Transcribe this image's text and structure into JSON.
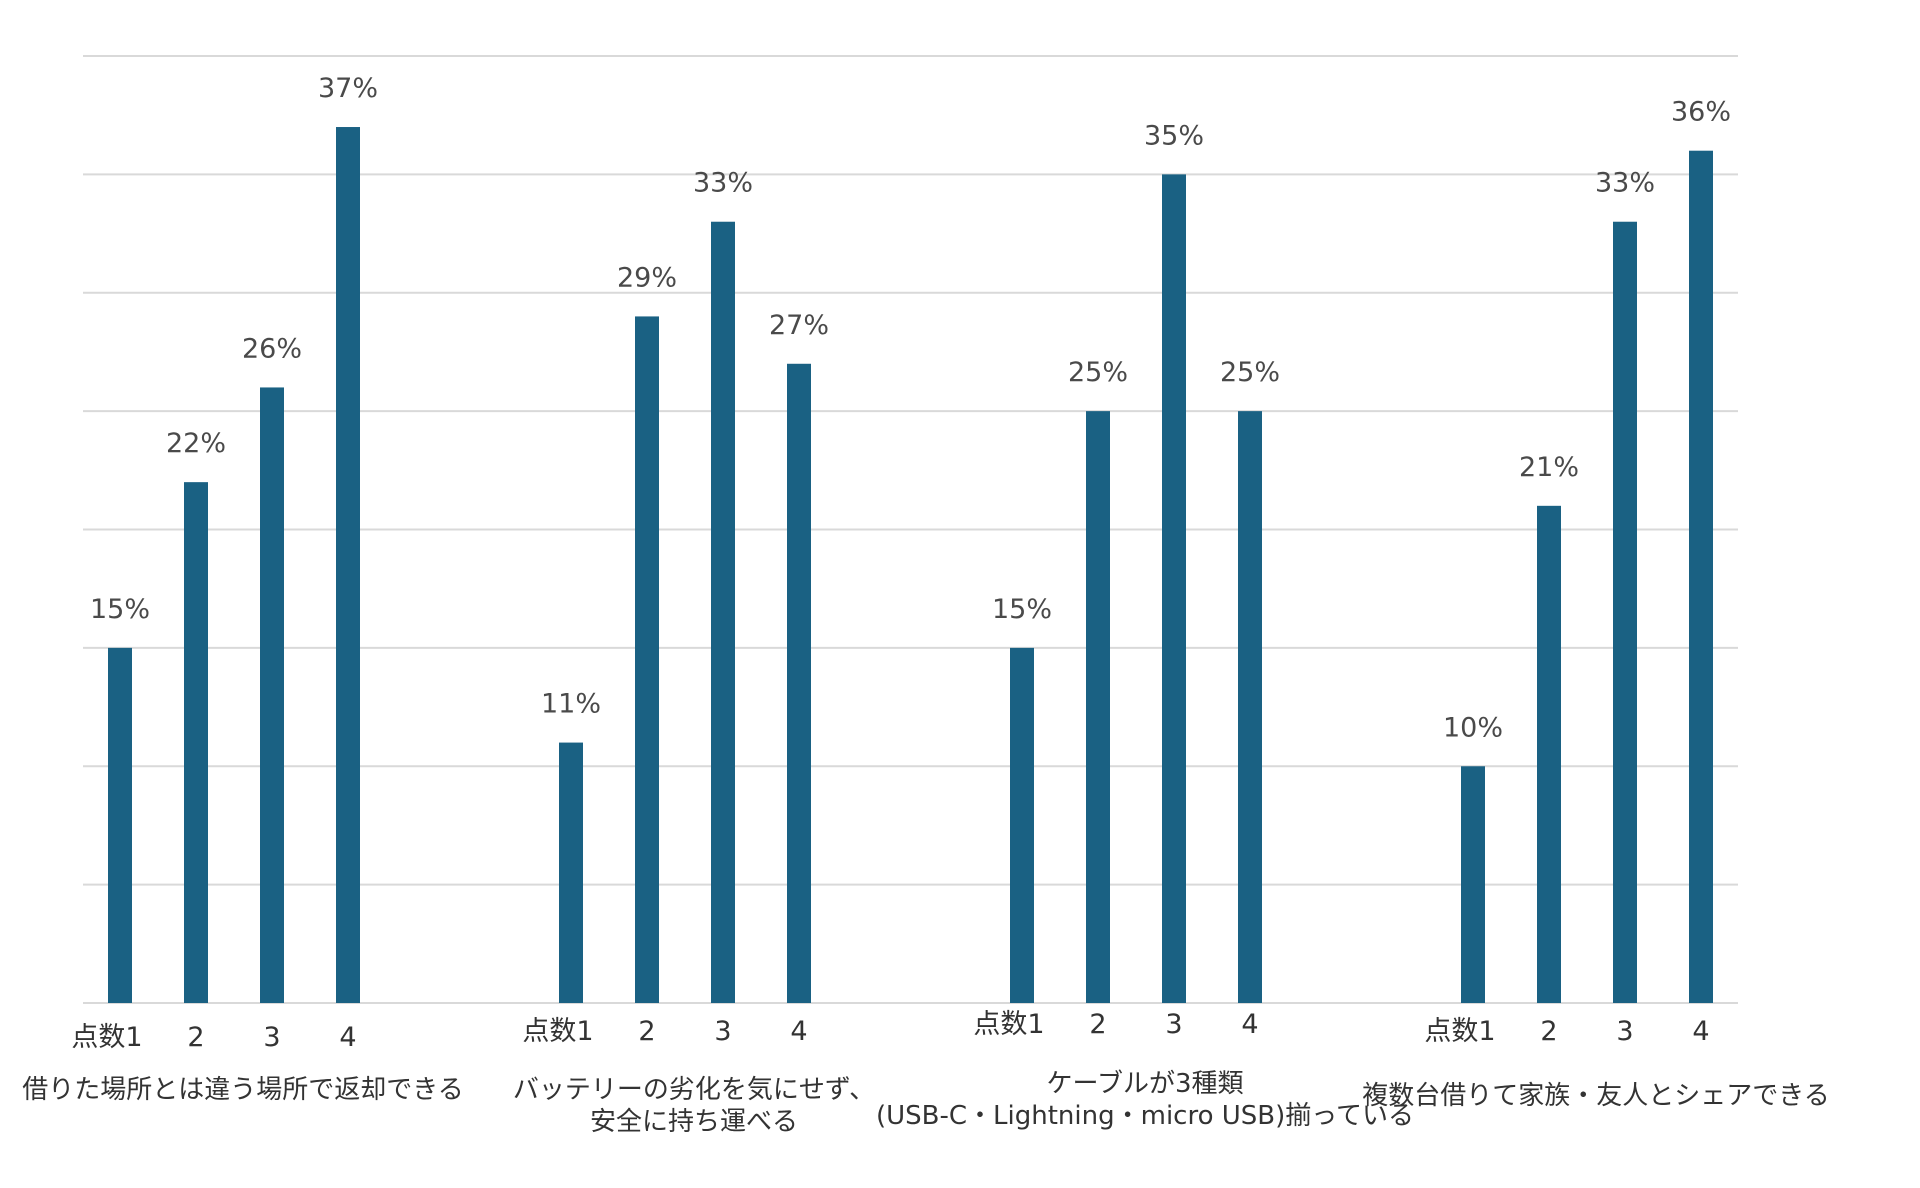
{
  "chart_data": {
    "type": "bar",
    "title": "",
    "xlabel": "",
    "ylabel": "",
    "ylim": [
      0,
      40
    ],
    "grid": true,
    "bar_color": "#1a6183",
    "grid_color": "#d9d9d9",
    "value_suffix": "%",
    "groups": [
      {
        "label_lines": [
          "借りた場所とは違う場所で返却できる"
        ],
        "categories": [
          "点数1",
          "2",
          "3",
          "4"
        ],
        "values": [
          15,
          22,
          26,
          37
        ]
      },
      {
        "label_lines": [
          "バッテリーの劣化を気にせず、",
          "安全に持ち運べる"
        ],
        "categories": [
          "点数1",
          "2",
          "3",
          "4"
        ],
        "values": [
          11,
          29,
          33,
          27
        ]
      },
      {
        "label_lines": [
          "ケーブルが3種類",
          "(USB-C・Lightning・micro USB)揃っている"
        ],
        "categories": [
          "点数1",
          "2",
          "3",
          "4"
        ],
        "values": [
          15,
          25,
          35,
          25
        ]
      },
      {
        "label_lines": [
          "複数台借りて家族・友人とシェアできる"
        ],
        "categories": [
          "点数1",
          "2",
          "3",
          "4"
        ],
        "values": [
          10,
          21,
          33,
          36
        ]
      }
    ]
  }
}
